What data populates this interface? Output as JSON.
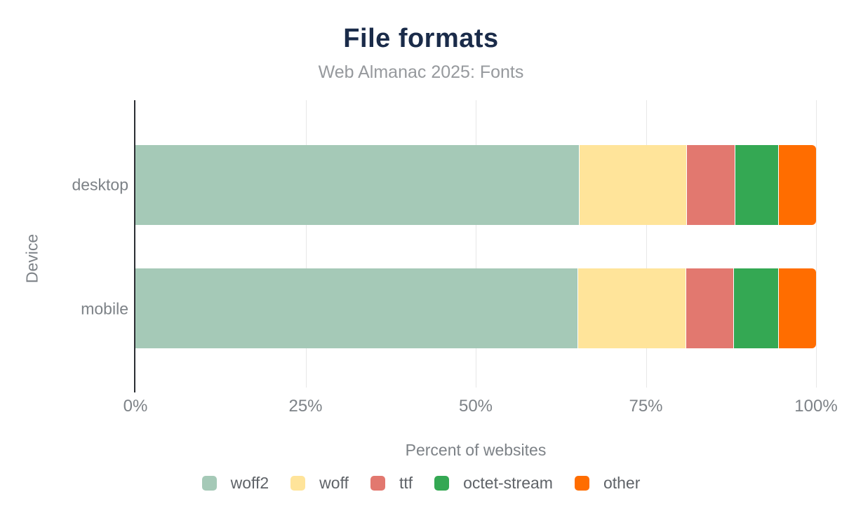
{
  "header": {
    "title": "File formats",
    "subtitle": "Web Almanac 2025: Fonts"
  },
  "colors": {
    "title": "#1a2b49",
    "subtitle": "#96999d",
    "axis_text": "#7d8287",
    "legend_text": "#5f6368",
    "axis_line": "#2b2e33",
    "gridline": "#e7e7e7"
  },
  "chart_data": {
    "type": "bar",
    "orientation": "horizontal",
    "stacked": true,
    "title": "File formats",
    "subtitle": "Web Almanac 2025: Fonts",
    "categories": [
      "desktop",
      "mobile"
    ],
    "series": [
      {
        "name": "woff2",
        "color": "#a5c9b7",
        "values": [
          65.2,
          64.9
        ]
      },
      {
        "name": "woff",
        "color": "#ffe49a",
        "values": [
          15.7,
          15.9
        ]
      },
      {
        "name": "ttf",
        "color": "#e2786f",
        "values": [
          7.1,
          7.0
        ]
      },
      {
        "name": "octet-stream",
        "color": "#34a853",
        "values": [
          6.4,
          6.6
        ]
      },
      {
        "name": "other",
        "color": "#ff6d00",
        "values": [
          5.6,
          5.6
        ]
      }
    ],
    "xlabel": "Percent of websites",
    "ylabel": "Device",
    "x_ticks": [
      "0%",
      "25%",
      "50%",
      "75%",
      "100%"
    ],
    "xlim": [
      0,
      100
    ],
    "grid": true,
    "legend_position": "bottom"
  }
}
